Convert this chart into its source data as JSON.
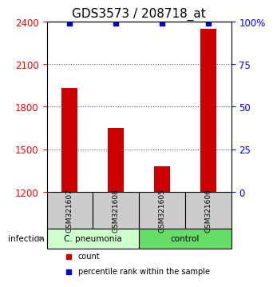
{
  "title": "GDS3573 / 208718_at",
  "samples": [
    "GSM321607",
    "GSM321608",
    "GSM321605",
    "GSM321606"
  ],
  "bar_values": [
    1930,
    1650,
    1380,
    2350
  ],
  "percentile_values": [
    2380,
    2380,
    2380,
    2380
  ],
  "percentile_pct": [
    99,
    99,
    99,
    99
  ],
  "ylim_left": [
    1200,
    2400
  ],
  "ylim_right": [
    0,
    100
  ],
  "yticks_left": [
    1200,
    1500,
    1800,
    2100,
    2400
  ],
  "yticks_right": [
    0,
    25,
    50,
    75,
    100
  ],
  "ytick_labels_right": [
    "0",
    "25",
    "50",
    "75",
    "100%"
  ],
  "bar_color": "#cc0000",
  "percentile_color": "#0000cc",
  "group_labels": [
    "C. pneumonia",
    "control"
  ],
  "group_colors": [
    "#ccffcc",
    "#66dd66"
  ],
  "group_ranges": [
    [
      0,
      2
    ],
    [
      2,
      4
    ]
  ],
  "infection_label": "infection",
  "legend_count_label": "count",
  "legend_pct_label": "percentile rank within the sample",
  "background_color": "#ffffff",
  "label_area_color": "#cccccc",
  "dotted_line_color": "#555555",
  "title_fontsize": 11,
  "axis_fontsize": 9,
  "tick_fontsize": 8.5
}
